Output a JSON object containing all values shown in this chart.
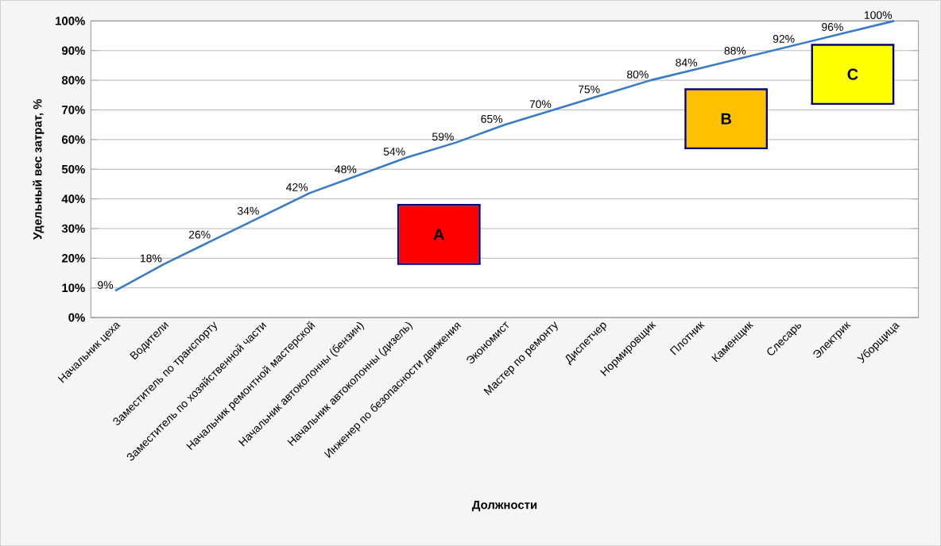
{
  "chart_data": {
    "type": "line",
    "xlabel": "Должности",
    "ylabel": "Удельный вес затрат, %",
    "categories": [
      "Начальник цеха",
      "Водители",
      "Заместитель по транспорту",
      "Заместитель по хозяйственной части",
      "Начальник ремонтной мастерской",
      "Начальник автоколонны (бензин)",
      "Начальник автоколонны (дизель)",
      "Инженер по безопасности движения",
      "Экономист",
      "Мастер по ремонту",
      "Диспетчер",
      "Нормировщик",
      "Плотник",
      "Каменщик",
      "Слесарь",
      "Электрик",
      "Уборщица"
    ],
    "series": [
      {
        "color": "#3a7bc8",
        "values": [
          9,
          18,
          26,
          34,
          42,
          48,
          54,
          59,
          65,
          70,
          75,
          80,
          84,
          88,
          92,
          96,
          100
        ],
        "value_labels": [
          "9%",
          "18%",
          "26%",
          "34%",
          "42%",
          "48%",
          "54%",
          "59%",
          "65%",
          "70%",
          "75%",
          "80%",
          "84%",
          "88%",
          "92%",
          "96%",
          "100%"
        ]
      }
    ],
    "ylim": [
      0,
      100
    ],
    "yticks": [
      {
        "value": 0,
        "label": "0%"
      },
      {
        "value": 10,
        "label": "10%"
      },
      {
        "value": 20,
        "label": "20%"
      },
      {
        "value": 30,
        "label": "30%"
      },
      {
        "value": 40,
        "label": "40%"
      },
      {
        "value": 50,
        "label": "50%"
      },
      {
        "value": 60,
        "label": "60%"
      },
      {
        "value": 70,
        "label": "70%"
      },
      {
        "value": 80,
        "label": "80%"
      },
      {
        "value": 90,
        "label": "90%"
      },
      {
        "value": 100,
        "label": "100%"
      }
    ],
    "grid": "y",
    "marker": "none",
    "line_style": "solid",
    "annotations": [
      "A",
      "B",
      "C"
    ]
  }
}
